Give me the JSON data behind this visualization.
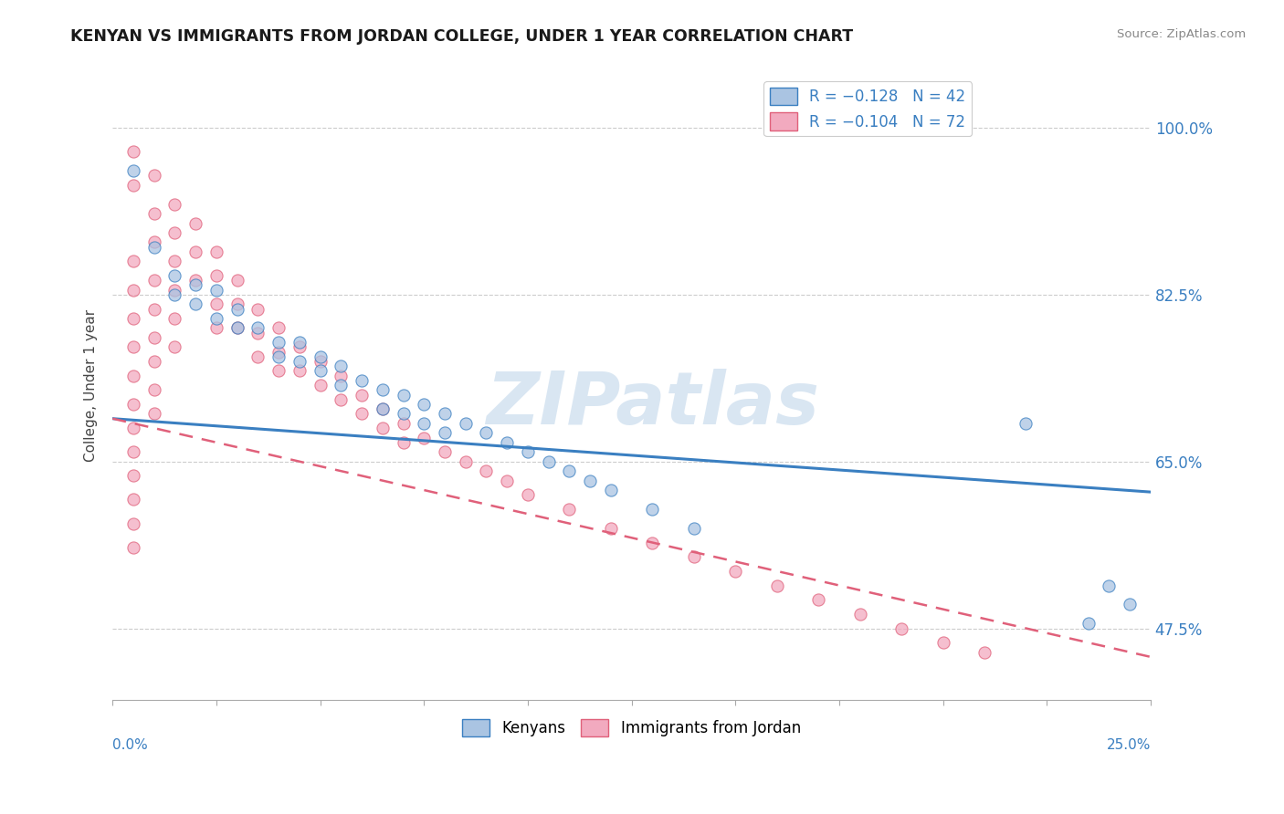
{
  "title": "KENYAN VS IMMIGRANTS FROM JORDAN COLLEGE, UNDER 1 YEAR CORRELATION CHART",
  "source": "Source: ZipAtlas.com",
  "ylabel": "College, Under 1 year",
  "yticks": [
    0.475,
    0.65,
    0.825,
    1.0
  ],
  "ytick_labels": [
    "47.5%",
    "65.0%",
    "82.5%",
    "100.0%"
  ],
  "xmin": 0.0,
  "xmax": 0.25,
  "ymin": 0.4,
  "ymax": 1.06,
  "blue_color": "#aac4e2",
  "pink_color": "#f2aabf",
  "blue_line_color": "#3a7fc1",
  "pink_line_color": "#e0607a",
  "watermark": "ZIPatlas",
  "watermark_color": "#c5d9ec",
  "blue_trend": [
    0.0,
    0.25,
    0.695,
    0.618
  ],
  "pink_trend": [
    0.0,
    0.25,
    0.695,
    0.445
  ],
  "blue_scatter": [
    [
      0.005,
      0.955
    ],
    [
      0.01,
      0.875
    ],
    [
      0.015,
      0.845
    ],
    [
      0.015,
      0.825
    ],
    [
      0.02,
      0.835
    ],
    [
      0.02,
      0.815
    ],
    [
      0.025,
      0.83
    ],
    [
      0.025,
      0.8
    ],
    [
      0.03,
      0.81
    ],
    [
      0.03,
      0.79
    ],
    [
      0.035,
      0.79
    ],
    [
      0.04,
      0.775
    ],
    [
      0.04,
      0.76
    ],
    [
      0.045,
      0.775
    ],
    [
      0.045,
      0.755
    ],
    [
      0.05,
      0.76
    ],
    [
      0.05,
      0.745
    ],
    [
      0.055,
      0.75
    ],
    [
      0.055,
      0.73
    ],
    [
      0.06,
      0.735
    ],
    [
      0.065,
      0.725
    ],
    [
      0.065,
      0.705
    ],
    [
      0.07,
      0.72
    ],
    [
      0.07,
      0.7
    ],
    [
      0.075,
      0.71
    ],
    [
      0.075,
      0.69
    ],
    [
      0.08,
      0.7
    ],
    [
      0.08,
      0.68
    ],
    [
      0.085,
      0.69
    ],
    [
      0.09,
      0.68
    ],
    [
      0.095,
      0.67
    ],
    [
      0.1,
      0.66
    ],
    [
      0.105,
      0.65
    ],
    [
      0.11,
      0.64
    ],
    [
      0.115,
      0.63
    ],
    [
      0.12,
      0.62
    ],
    [
      0.13,
      0.6
    ],
    [
      0.14,
      0.58
    ],
    [
      0.22,
      0.69
    ],
    [
      0.235,
      0.48
    ],
    [
      0.24,
      0.52
    ],
    [
      0.245,
      0.5
    ]
  ],
  "pink_scatter": [
    [
      0.005,
      0.975
    ],
    [
      0.005,
      0.94
    ],
    [
      0.01,
      0.95
    ],
    [
      0.01,
      0.91
    ],
    [
      0.01,
      0.88
    ],
    [
      0.015,
      0.92
    ],
    [
      0.015,
      0.89
    ],
    [
      0.015,
      0.86
    ],
    [
      0.02,
      0.9
    ],
    [
      0.02,
      0.87
    ],
    [
      0.02,
      0.84
    ],
    [
      0.025,
      0.87
    ],
    [
      0.025,
      0.845
    ],
    [
      0.025,
      0.815
    ],
    [
      0.025,
      0.79
    ],
    [
      0.03,
      0.84
    ],
    [
      0.03,
      0.815
    ],
    [
      0.03,
      0.79
    ],
    [
      0.035,
      0.81
    ],
    [
      0.035,
      0.785
    ],
    [
      0.035,
      0.76
    ],
    [
      0.04,
      0.79
    ],
    [
      0.04,
      0.765
    ],
    [
      0.04,
      0.745
    ],
    [
      0.045,
      0.77
    ],
    [
      0.045,
      0.745
    ],
    [
      0.05,
      0.755
    ],
    [
      0.05,
      0.73
    ],
    [
      0.055,
      0.74
    ],
    [
      0.055,
      0.715
    ],
    [
      0.06,
      0.72
    ],
    [
      0.06,
      0.7
    ],
    [
      0.065,
      0.705
    ],
    [
      0.065,
      0.685
    ],
    [
      0.07,
      0.69
    ],
    [
      0.07,
      0.67
    ],
    [
      0.075,
      0.675
    ],
    [
      0.08,
      0.66
    ],
    [
      0.085,
      0.65
    ],
    [
      0.09,
      0.64
    ],
    [
      0.095,
      0.63
    ],
    [
      0.1,
      0.615
    ],
    [
      0.11,
      0.6
    ],
    [
      0.12,
      0.58
    ],
    [
      0.13,
      0.565
    ],
    [
      0.14,
      0.55
    ],
    [
      0.15,
      0.535
    ],
    [
      0.16,
      0.52
    ],
    [
      0.17,
      0.505
    ],
    [
      0.18,
      0.49
    ],
    [
      0.19,
      0.475
    ],
    [
      0.2,
      0.46
    ],
    [
      0.21,
      0.45
    ],
    [
      0.005,
      0.86
    ],
    [
      0.005,
      0.83
    ],
    [
      0.005,
      0.8
    ],
    [
      0.005,
      0.77
    ],
    [
      0.005,
      0.74
    ],
    [
      0.005,
      0.71
    ],
    [
      0.005,
      0.685
    ],
    [
      0.005,
      0.66
    ],
    [
      0.005,
      0.635
    ],
    [
      0.005,
      0.61
    ],
    [
      0.005,
      0.585
    ],
    [
      0.005,
      0.56
    ],
    [
      0.01,
      0.84
    ],
    [
      0.01,
      0.81
    ],
    [
      0.01,
      0.78
    ],
    [
      0.01,
      0.755
    ],
    [
      0.01,
      0.725
    ],
    [
      0.01,
      0.7
    ],
    [
      0.015,
      0.83
    ],
    [
      0.015,
      0.8
    ],
    [
      0.015,
      0.77
    ]
  ]
}
